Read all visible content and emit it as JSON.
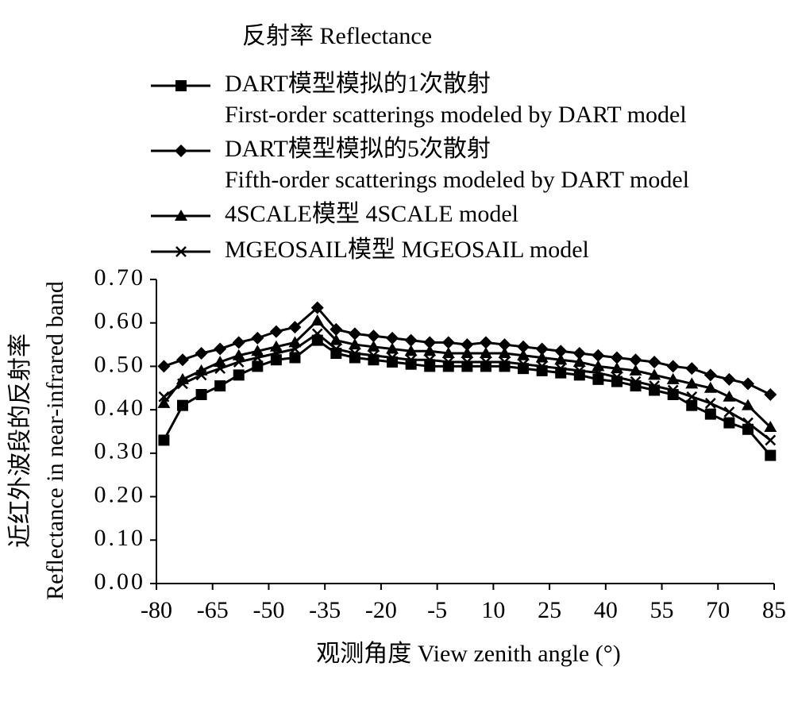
{
  "chart_data": {
    "type": "line",
    "title": "反射率 Reflectance",
    "xlabel": "观测角度 View zenith angle (°)",
    "ylabel": "近红外波段的反射率\nReflectance in near-infrared band",
    "x": [
      -78,
      -73,
      -68,
      -63,
      -58,
      -53,
      -48,
      -43,
      -37,
      -32,
      -27,
      -22,
      -17,
      -12,
      -7,
      -2,
      3,
      8,
      13,
      18,
      23,
      28,
      33,
      38,
      43,
      48,
      53,
      58,
      63,
      68,
      73,
      78,
      84
    ],
    "series": [
      {
        "name": "DART模型模拟的1次散射\nFirst-order scatterings modeled by DART model",
        "color": "#000000",
        "marker": "square",
        "values": [
          0.33,
          0.41,
          0.435,
          0.455,
          0.48,
          0.5,
          0.515,
          0.52,
          0.56,
          0.53,
          0.52,
          0.515,
          0.51,
          0.505,
          0.5,
          0.5,
          0.5,
          0.5,
          0.5,
          0.495,
          0.49,
          0.485,
          0.48,
          0.47,
          0.465,
          0.455,
          0.445,
          0.435,
          0.41,
          0.39,
          0.37,
          0.355,
          0.295
        ]
      },
      {
        "name": "DART模型模拟的5次散射\nFifth-order scatterings modeled by DART model",
        "color": "#000000",
        "marker": "diamond",
        "values": [
          0.5,
          0.515,
          0.53,
          0.54,
          0.555,
          0.565,
          0.58,
          0.59,
          0.635,
          0.585,
          0.575,
          0.57,
          0.565,
          0.56,
          0.555,
          0.555,
          0.55,
          0.555,
          0.55,
          0.545,
          0.54,
          0.535,
          0.53,
          0.525,
          0.52,
          0.515,
          0.51,
          0.5,
          0.495,
          0.48,
          0.47,
          0.46,
          0.435
        ]
      },
      {
        "name": "4SCALE模型 4SCALE model",
        "color": "#000000",
        "marker": "triangle",
        "values": [
          0.415,
          0.47,
          0.49,
          0.51,
          0.525,
          0.535,
          0.545,
          0.555,
          0.605,
          0.56,
          0.55,
          0.545,
          0.54,
          0.535,
          0.535,
          0.53,
          0.53,
          0.53,
          0.53,
          0.525,
          0.52,
          0.515,
          0.51,
          0.5,
          0.495,
          0.49,
          0.48,
          0.47,
          0.46,
          0.45,
          0.43,
          0.41,
          0.36
        ]
      },
      {
        "name": "MGEOSAIL模型 MGEOSAIL model",
        "color": "#000000",
        "marker": "x",
        "values": [
          0.43,
          0.46,
          0.48,
          0.495,
          0.51,
          0.52,
          0.53,
          0.54,
          0.575,
          0.54,
          0.53,
          0.525,
          0.52,
          0.515,
          0.515,
          0.51,
          0.51,
          0.51,
          0.51,
          0.505,
          0.5,
          0.495,
          0.49,
          0.485,
          0.475,
          0.465,
          0.455,
          0.445,
          0.43,
          0.415,
          0.395,
          0.37,
          0.33
        ]
      }
    ],
    "xlim": [
      -80,
      85
    ],
    "xticks": [
      -80,
      -65,
      -50,
      -35,
      -20,
      -5,
      10,
      25,
      40,
      55,
      70,
      85
    ],
    "ylim": [
      0,
      0.7
    ],
    "yticks": [
      {
        "value": 0,
        "label": "0.00"
      },
      {
        "value": 0.1,
        "label": "0.10"
      },
      {
        "value": 0.2,
        "label": "0.20"
      },
      {
        "value": 0.3,
        "label": "0.30"
      },
      {
        "value": 0.4,
        "label": "0.40"
      },
      {
        "value": 0.5,
        "label": "0.50"
      },
      {
        "value": 0.6,
        "label": "0.60"
      },
      {
        "value": 0.7,
        "label": "0.70"
      }
    ],
    "grid": false,
    "legend": "top"
  }
}
